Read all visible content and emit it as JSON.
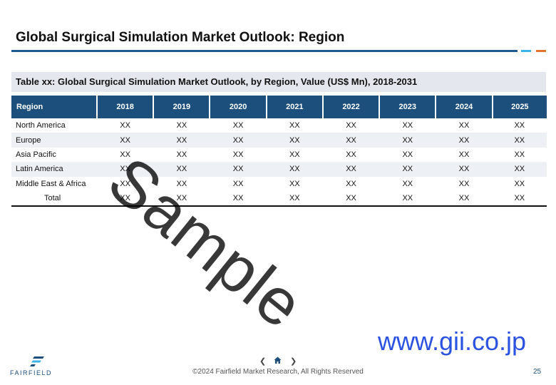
{
  "slide": {
    "title": "Global Surgical Simulation Market Outlook: Region"
  },
  "table": {
    "caption": "Table xx: Global Surgical Simulation Market Outlook, by Region, Value (US$ Mn), 2018-2031",
    "headers": [
      "Region",
      "2018",
      "2019",
      "2020",
      "2021",
      "2022",
      "2023",
      "2024",
      "2025"
    ],
    "rows": [
      {
        "region": "North America",
        "values": [
          "XX",
          "XX",
          "XX",
          "XX",
          "XX",
          "XX",
          "XX",
          "XX"
        ]
      },
      {
        "region": "Europe",
        "values": [
          "XX",
          "XX",
          "XX",
          "XX",
          "XX",
          "XX",
          "XX",
          "XX"
        ]
      },
      {
        "region": "Asia Pacific",
        "values": [
          "XX",
          "XX",
          "XX",
          "XX",
          "XX",
          "XX",
          "XX",
          "XX"
        ]
      },
      {
        "region": "Latin America",
        "values": [
          "XX",
          "XX",
          "XX",
          "XX",
          "XX",
          "XX",
          "XX",
          "XX"
        ]
      },
      {
        "region": "Middle East & Africa",
        "values": [
          "XX",
          "XX",
          "XX",
          "XX",
          "XX",
          "XX",
          "XX",
          "XX"
        ]
      },
      {
        "region": "Total",
        "values": [
          "XX",
          "XX",
          "XX",
          "XX",
          "XX",
          "XX",
          "XX",
          "XX"
        ]
      }
    ]
  },
  "watermark": {
    "text": "Sample",
    "url": "www.gii.co.jp"
  },
  "footer": {
    "logo_text": "FAIRFIELD",
    "prev_icon": "chevron-left-icon",
    "home_icon": "home-icon",
    "next_icon": "chevron-right-icon",
    "copyright": "©2024 Fairfield Market Research, All Rights Reserved",
    "page_number": "25"
  },
  "colors": {
    "header_bg": "#1c4f7c",
    "caption_bg": "#e4e8ee",
    "accent_blue": "#3bb3e6",
    "accent_orange": "#e27330",
    "url_blue": "#2c53e0"
  }
}
